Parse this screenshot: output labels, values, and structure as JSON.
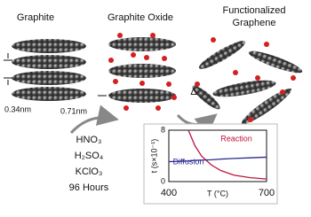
{
  "labels": {
    "graphite": "Graphite",
    "graphite_oxide": "Graphite Oxide",
    "functionalized": [
      "Functionalized",
      "Graphene"
    ],
    "spacing_graphite": "0.34nm",
    "spacing_oxide": "0.71nm",
    "heat": "Δ"
  },
  "conditions": [
    "HNO₃",
    "H₂SO₄",
    "KClO₃",
    "96 Hours"
  ],
  "inset": {
    "type": "line",
    "xlabel": "T (°C)",
    "ylabel": "t (s×10⁻¹)",
    "xlim": [
      400,
      700
    ],
    "xticks": [
      400,
      700
    ],
    "ylim": [
      0,
      8
    ],
    "yticks": [
      0,
      8
    ],
    "x": [
      400,
      460,
      480,
      500,
      530,
      560,
      600,
      650,
      700
    ],
    "series": [
      {
        "name": "Reaction",
        "color": "#c0143c",
        "values": [
          null,
          8,
          5.6,
          4,
          2.6,
          1.7,
          1,
          0.6,
          0.4
        ]
      },
      {
        "name": "Diffusion",
        "color": "#2a2a8c",
        "values": [
          3.1,
          3.2,
          3.3,
          3.35,
          3.4,
          3.5,
          3.6,
          3.7,
          3.8
        ]
      }
    ]
  }
}
